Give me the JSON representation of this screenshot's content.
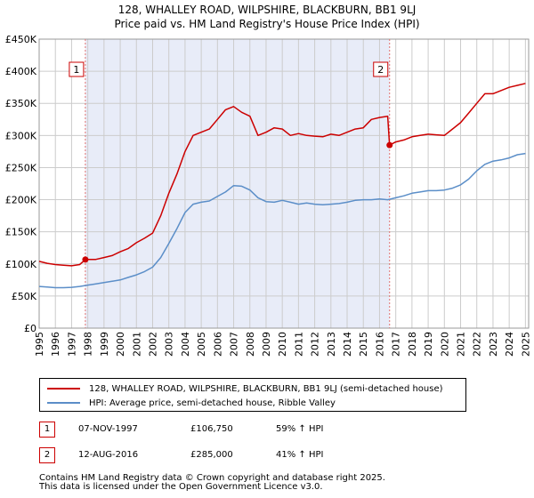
{
  "title_line1": "128, WHALLEY ROAD, WILPSHIRE, BLACKBURN, BB1 9LJ",
  "title_line2": "Price paid vs. HM Land Registry's House Price Index (HPI)",
  "chart_data": {
    "type": "line",
    "title": "128, WHALLEY ROAD, WILPSHIRE, BLACKBURN, BB1 9LJ — Price paid vs. HM Land Registry's House Price Index (HPI)",
    "xlabel": "",
    "ylabel": "",
    "xlim": [
      1995,
      2025.2
    ],
    "ylim": [
      0,
      450000
    ],
    "grid": true,
    "x_ticks": [
      "1995",
      "1996",
      "1997",
      "1998",
      "1999",
      "2000",
      "2001",
      "2002",
      "2003",
      "2004",
      "2005",
      "2006",
      "2007",
      "2008",
      "2009",
      "2010",
      "2011",
      "2012",
      "2013",
      "2014",
      "2015",
      "2016",
      "2017",
      "2018",
      "2019",
      "2020",
      "2021",
      "2022",
      "2023",
      "2024",
      "2025"
    ],
    "y_ticks": [
      {
        "value": 0,
        "label": "£0"
      },
      {
        "value": 50000,
        "label": "£50K"
      },
      {
        "value": 100000,
        "label": "£100K"
      },
      {
        "value": 150000,
        "label": "£150K"
      },
      {
        "value": 200000,
        "label": "£200K"
      },
      {
        "value": 250000,
        "label": "£250K"
      },
      {
        "value": 300000,
        "label": "£300K"
      },
      {
        "value": 350000,
        "label": "£350K"
      },
      {
        "value": 400000,
        "label": "£400K"
      },
      {
        "value": 450000,
        "label": "£450K"
      }
    ],
    "shaded_period": [
      1997.85,
      2016.62
    ],
    "series": [
      {
        "name": "128, WHALLEY ROAD, WILPSHIRE, BLACKBURN, BB1 9LJ (semi-detached house)",
        "color": "#cc0000",
        "x": [
          1995,
          1995.5,
          1996,
          1996.5,
          1997,
          1997.5,
          1997.85,
          1998,
          1998.5,
          1999,
          1999.5,
          2000,
          2000.5,
          2001,
          2001.5,
          2002,
          2002.5,
          2003,
          2003.5,
          2004,
          2004.5,
          2005,
          2005.5,
          2006,
          2006.5,
          2007,
          2007.5,
          2008,
          2008.5,
          2009,
          2009.5,
          2010,
          2010.5,
          2011,
          2011.5,
          2012,
          2012.5,
          2013,
          2013.5,
          2014,
          2014.5,
          2015,
          2015.5,
          2016,
          2016.5,
          2016.62,
          2017,
          2017.5,
          2018,
          2018.5,
          2019,
          2019.5,
          2020,
          2020.5,
          2021,
          2021.5,
          2022,
          2022.5,
          2023,
          2023.5,
          2024,
          2024.5,
          2025
        ],
        "values": [
          104000,
          101000,
          99000,
          98000,
          97000,
          99000,
          106750,
          107000,
          107000,
          110000,
          113000,
          119000,
          124000,
          133000,
          140000,
          148000,
          175000,
          210000,
          240000,
          275000,
          300000,
          305000,
          310000,
          325000,
          340000,
          345000,
          336000,
          330000,
          300000,
          305000,
          312000,
          310000,
          300000,
          303000,
          300000,
          299000,
          298000,
          302000,
          300000,
          305000,
          310000,
          312000,
          325000,
          328000,
          330000,
          285000,
          290000,
          293000,
          298000,
          300000,
          302000,
          301000,
          300000,
          310000,
          320000,
          335000,
          350000,
          365000,
          365000,
          370000,
          375000,
          378000,
          381000
        ]
      },
      {
        "name": "HPI: Average price, semi-detached house, Ribble Valley",
        "color": "#5b8ec8",
        "x": [
          1995,
          1995.5,
          1996,
          1996.5,
          1997,
          1997.5,
          1998,
          1998.5,
          1999,
          1999.5,
          2000,
          2000.5,
          2001,
          2001.5,
          2002,
          2002.5,
          2003,
          2003.5,
          2004,
          2004.5,
          2005,
          2005.5,
          2006,
          2006.5,
          2007,
          2007.5,
          2008,
          2008.5,
          2009,
          2009.5,
          2010,
          2010.5,
          2011,
          2011.5,
          2012,
          2012.5,
          2013,
          2013.5,
          2014,
          2014.5,
          2015,
          2015.5,
          2016,
          2016.5,
          2017,
          2017.5,
          2018,
          2018.5,
          2019,
          2019.5,
          2020,
          2020.5,
          2021,
          2021.5,
          2022,
          2022.5,
          2023,
          2023.5,
          2024,
          2024.5,
          2025
        ],
        "values": [
          65000,
          64000,
          63000,
          63000,
          63500,
          65000,
          67000,
          69000,
          71000,
          73000,
          75000,
          79000,
          83000,
          88000,
          95000,
          110000,
          132000,
          155000,
          180000,
          193000,
          196000,
          198000,
          205000,
          212000,
          222000,
          221000,
          215000,
          203000,
          197000,
          196000,
          199000,
          196000,
          193000,
          195000,
          193000,
          192000,
          193000,
          194000,
          196000,
          199000,
          200000,
          200000,
          201000,
          200000,
          203000,
          206000,
          210000,
          212000,
          214000,
          214000,
          215000,
          218000,
          223000,
          232000,
          245000,
          255000,
          260000,
          262000,
          265000,
          270000,
          272000
        ]
      }
    ],
    "annotations": [
      {
        "label": "1",
        "x": 1997.85
      },
      {
        "label": "2",
        "x": 2016.62
      }
    ],
    "sale_points": [
      {
        "x": 1997.85,
        "y": 106750
      },
      {
        "x": 2016.62,
        "y": 285000
      }
    ],
    "legend_position": "bottom"
  },
  "legend": {
    "red_label": "128, WHALLEY ROAD, WILPSHIRE, BLACKBURN, BB1 9LJ (semi-detached house)",
    "blue_label": "HPI: Average price, semi-detached house, Ribble Valley"
  },
  "sales": [
    {
      "num": "1",
      "date": "07-NOV-1997",
      "price": "£106,750",
      "hpi": "59% ↑ HPI"
    },
    {
      "num": "2",
      "date": "12-AUG-2016",
      "price": "£285,000",
      "hpi": "41% ↑ HPI"
    }
  ],
  "footer": {
    "line1": "Contains HM Land Registry data © Crown copyright and database right 2025.",
    "line2": "This data is licensed under the Open Government Licence v3.0."
  },
  "colors": {
    "red": "#cc0000",
    "blue": "#5b8ec8",
    "shade": "#e8ecf8",
    "grid": "#cccccc",
    "dashed": "#e07070"
  }
}
